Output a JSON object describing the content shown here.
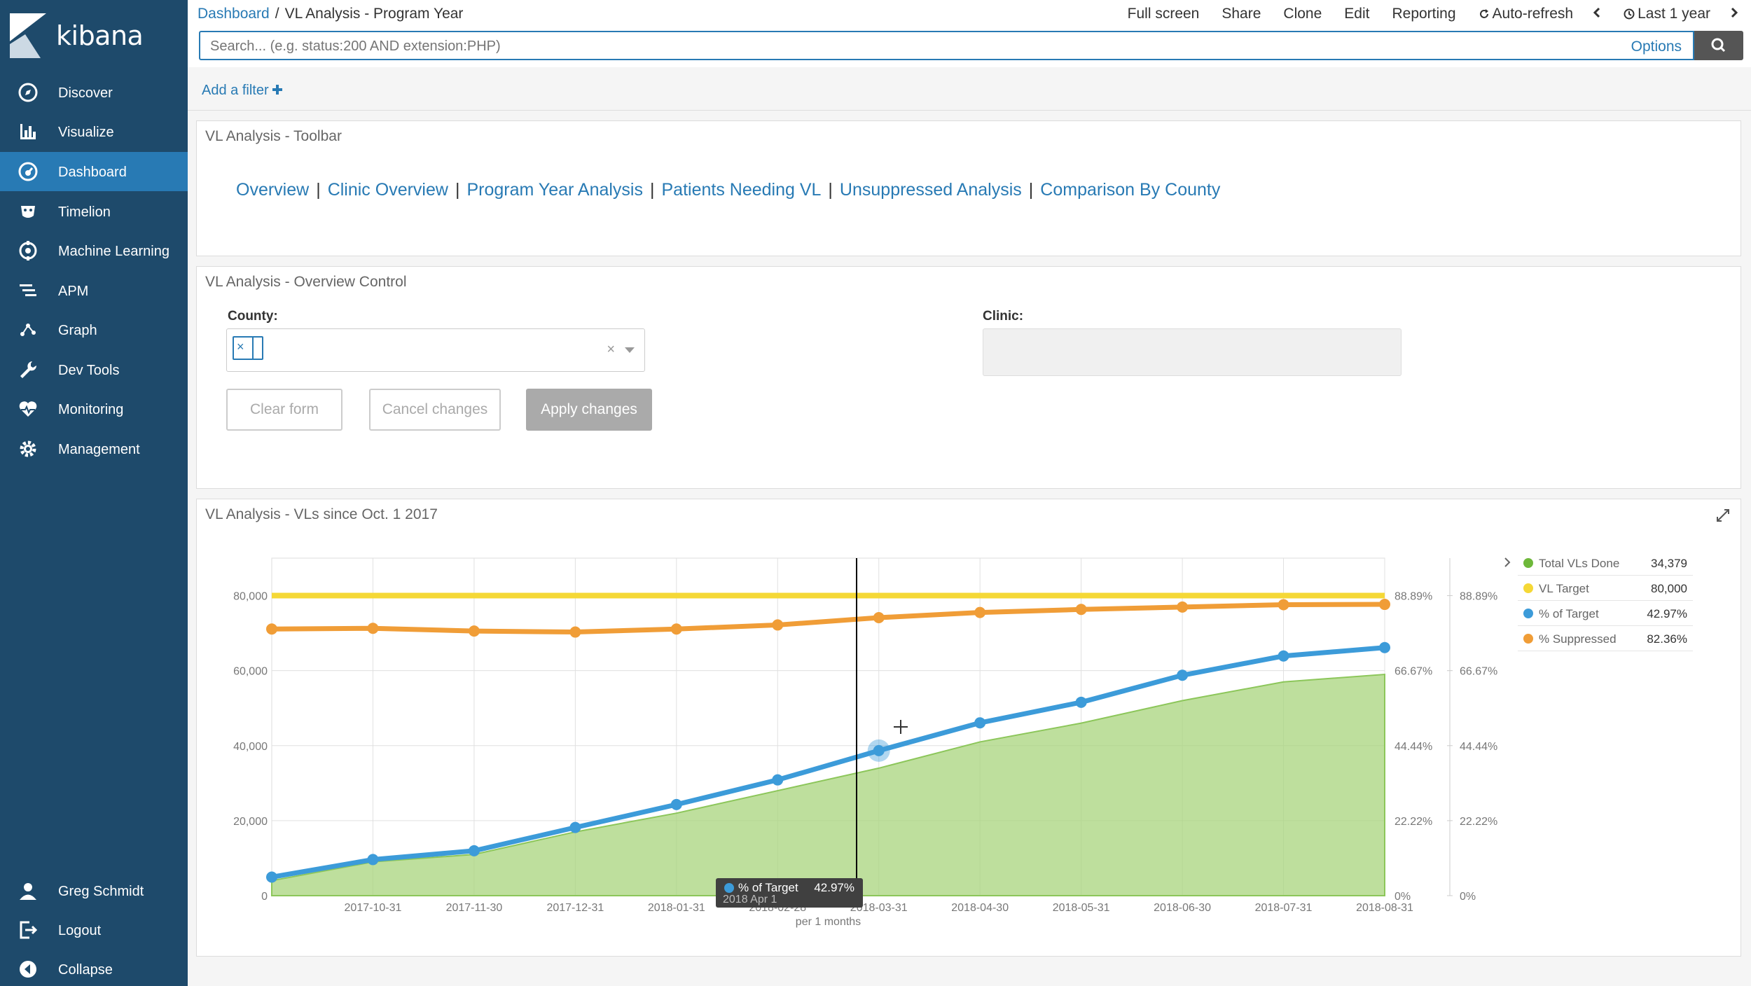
{
  "app": {
    "brand": "kibana"
  },
  "sidebar": {
    "items": [
      {
        "label": "Discover",
        "icon": "compass-icon"
      },
      {
        "label": "Visualize",
        "icon": "bar-chart-icon"
      },
      {
        "label": "Dashboard",
        "icon": "dashboard-icon",
        "active": true
      },
      {
        "label": "Timelion",
        "icon": "timelion-icon"
      },
      {
        "label": "Machine Learning",
        "icon": "machine-learning-icon"
      },
      {
        "label": "APM",
        "icon": "apm-icon"
      },
      {
        "label": "Graph",
        "icon": "graph-icon"
      },
      {
        "label": "Dev Tools",
        "icon": "wrench-icon"
      },
      {
        "label": "Monitoring",
        "icon": "heartbeat-icon"
      },
      {
        "label": "Management",
        "icon": "gear-icon"
      }
    ],
    "user": "Greg Schmidt",
    "logout": "Logout",
    "collapse": "Collapse"
  },
  "header": {
    "breadcrumb_root": "Dashboard",
    "breadcrumb_sep": "/",
    "breadcrumb_current": "VL Analysis - Program Year",
    "actions": {
      "full_screen": "Full screen",
      "share": "Share",
      "clone": "Clone",
      "edit": "Edit",
      "reporting": "Reporting",
      "auto_refresh": "Auto-refresh",
      "time_range": "Last 1 year"
    }
  },
  "search": {
    "placeholder": "Search... (e.g. status:200 AND extension:PHP)",
    "options": "Options"
  },
  "filters": {
    "add_filter": "Add a filter"
  },
  "toolbar_panel": {
    "title": "VL Analysis - Toolbar",
    "links": [
      "Overview",
      "Clinic Overview",
      "Program Year Analysis",
      "Patients Needing VL",
      "Unsuppressed Analysis",
      "Comparison By County"
    ],
    "separator": "|"
  },
  "control_panel": {
    "title": "VL Analysis - Overview Control",
    "county_label": "County:",
    "clinic_label": "Clinic:",
    "chip_x": "×",
    "clear_x": "×",
    "clear_form": "Clear form",
    "cancel_changes": "Cancel changes",
    "apply_changes": "Apply changes"
  },
  "chart_panel": {
    "title": "VL Analysis - VLs since Oct. 1 2017",
    "x_axis_label": "per 1 months"
  },
  "chart_data": {
    "type": "line",
    "x": [
      "2017-10-01",
      "2017-10-31",
      "2017-11-30",
      "2017-12-31",
      "2018-01-31",
      "2018-02-28",
      "2018-03-31",
      "2018-04-30",
      "2018-05-31",
      "2018-06-30",
      "2018-07-31",
      "2018-08-31"
    ],
    "x_tick_labels": [
      "2017-10-31",
      "2017-11-30",
      "2017-12-31",
      "2018-01-31",
      "2018-02-28",
      "2018-03-31",
      "2018-04-30",
      "2018-05-31",
      "2018-06-30",
      "2018-07-31",
      "2018-08-31"
    ],
    "y_left": {
      "ticks": [
        "0",
        "20,000",
        "40,000",
        "60,000",
        "80,000"
      ],
      "range": [
        0,
        90000
      ]
    },
    "y_right": {
      "ticks": [
        "0%",
        "22.22%",
        "44.44%",
        "66.67%",
        "88.89%"
      ],
      "range": [
        0,
        100
      ]
    },
    "series": [
      {
        "name": "Total VLs Done",
        "type": "area",
        "axis": "left",
        "color": "#6eb83a",
        "values": [
          4000,
          9000,
          11000,
          17000,
          22000,
          28000,
          34000,
          41000,
          46000,
          52000,
          57000,
          59000
        ]
      },
      {
        "name": "VL Target",
        "type": "line",
        "axis": "left",
        "color": "#f5d836",
        "values": [
          80000,
          80000,
          80000,
          80000,
          80000,
          80000,
          80000,
          80000,
          80000,
          80000,
          80000,
          80000
        ]
      },
      {
        "name": "% of Target",
        "type": "line",
        "axis": "right",
        "color": "#3c9bd9",
        "values": [
          5.5,
          10.7,
          13.3,
          20.2,
          27.0,
          34.3,
          42.97,
          51.2,
          57.3,
          65.3,
          71.0,
          73.5
        ]
      },
      {
        "name": "% Suppressed",
        "type": "line",
        "axis": "right",
        "color": "#f09d37",
        "values": [
          79.0,
          79.2,
          78.4,
          78.1,
          79.0,
          80.2,
          82.36,
          83.9,
          84.8,
          85.5,
          86.2,
          86.3
        ]
      }
    ],
    "legend": [
      {
        "name": "Total VLs Done",
        "value": "34,379",
        "color": "#6eb83a"
      },
      {
        "name": "VL Target",
        "value": "80,000",
        "color": "#f5d836"
      },
      {
        "name": "% of Target",
        "value": "42.97%",
        "color": "#3c9bd9"
      },
      {
        "name": "% Suppressed",
        "value": "82.36%",
        "color": "#f09d37"
      }
    ],
    "legend_placement": "right",
    "grid": true,
    "tooltip": {
      "series": "% of Target",
      "value": "42.97%",
      "date": "2018 Apr 1"
    }
  }
}
